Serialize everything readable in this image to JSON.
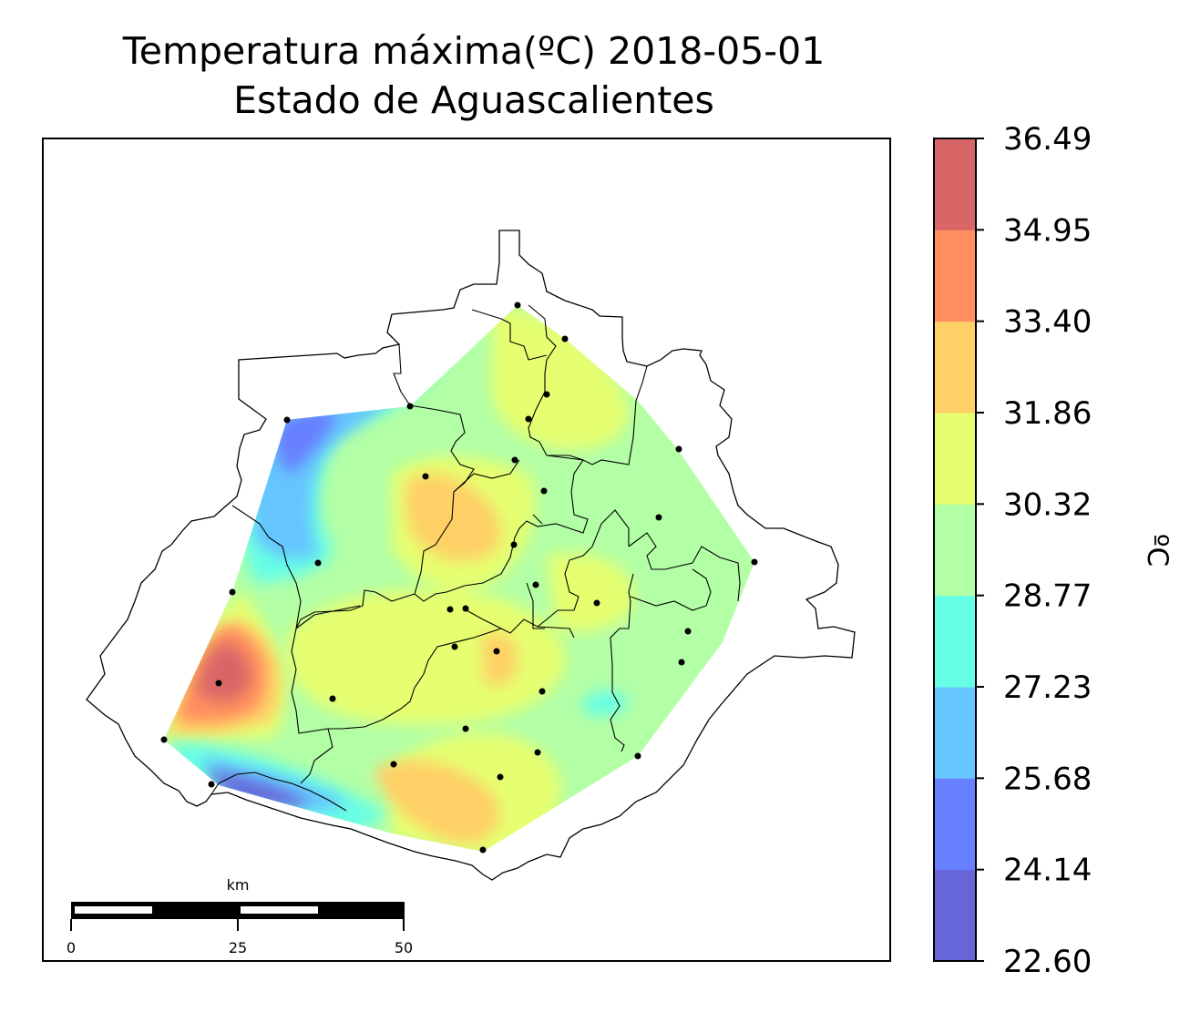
{
  "title": {
    "line1": "Temperatura máxima(ºC) 2018-05-01",
    "line2": "Estado de Aguascalientes"
  },
  "colorbar": {
    "unit_label": "ºC",
    "ticks": [
      "22.60",
      "24.14",
      "25.68",
      "27.23",
      "28.77",
      "30.32",
      "31.86",
      "33.40",
      "34.95",
      "36.49"
    ],
    "colors": [
      "#6666d9",
      "#6680ff",
      "#66c4ff",
      "#66ffe6",
      "#b3ffa6",
      "#e6ff70",
      "#ffd066",
      "#ff8f5e",
      "#d96666"
    ]
  },
  "scalebar": {
    "unit": "km",
    "labels": [
      "0",
      "25",
      "50"
    ]
  },
  "map": {
    "station_marker": "star",
    "station_count": 33
  }
}
